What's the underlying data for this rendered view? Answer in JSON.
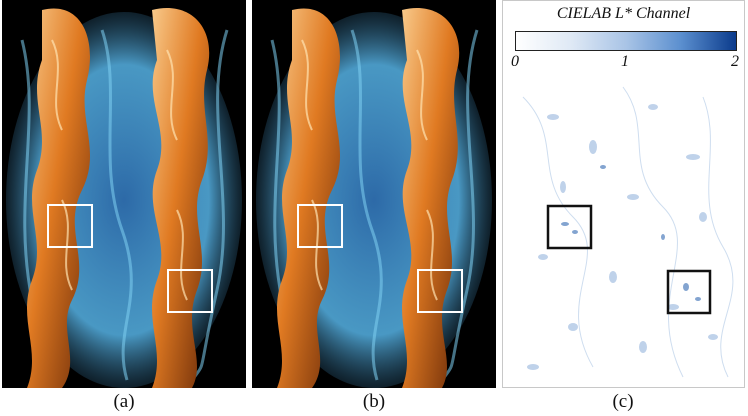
{
  "figure": {
    "panels": [
      {
        "id": "a",
        "caption": "(a)"
      },
      {
        "id": "b",
        "caption": "(b)"
      },
      {
        "id": "c",
        "caption": "(c)"
      }
    ]
  },
  "colorbar": {
    "title": "CIELAB L* Channel",
    "ticks": [
      "0",
      "1",
      "2"
    ],
    "colors": [
      "#ffffff",
      "#0b3b8c"
    ]
  },
  "colors": {
    "flame_orange": "#e07a22",
    "flame_highlight": "#f6c27a",
    "smoke_blue": "#4aa3d8",
    "background_render": "#000000",
    "highlight_box_white": "#ffffff",
    "highlight_box_black": "#111111"
  }
}
